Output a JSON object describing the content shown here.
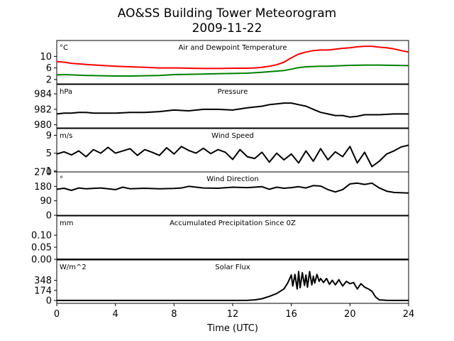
{
  "title_line1": "AO&SS Building Tower Meteorogram",
  "title_line2": "2009-11-22",
  "x_axis": {
    "label": "Time (UTC)",
    "range": [
      0,
      24
    ],
    "ticks": [
      0,
      4,
      8,
      12,
      16,
      20,
      24
    ],
    "tick_labels": [
      "0",
      "4",
      "8",
      "12",
      "16",
      "20",
      "24"
    ]
  },
  "chart_data": [
    {
      "type": "line",
      "title": "Air and Dewpoint Temperature",
      "unit_label": "°C",
      "ylim": [
        0.5,
        15.5
      ],
      "yticks": [
        2,
        6,
        10
      ],
      "ytick_labels": [
        "2",
        "6",
        "10"
      ],
      "series": [
        {
          "color": "#ff0000",
          "x": [
            0,
            0.5,
            1,
            1.5,
            2,
            3,
            4,
            5,
            6,
            7,
            8,
            9,
            10,
            11,
            12,
            12.5,
            13,
            13.5,
            14,
            14.5,
            15,
            15.5,
            16,
            16.5,
            17,
            17.5,
            18,
            18.5,
            19,
            19.5,
            20,
            20.5,
            21,
            21.5,
            22,
            22.5,
            23,
            23.5,
            24
          ],
          "y": [
            8.2,
            8.0,
            7.6,
            7.4,
            7.2,
            6.9,
            6.6,
            6.4,
            6.2,
            6.0,
            6.0,
            5.9,
            5.8,
            5.8,
            5.9,
            5.9,
            5.9,
            6.0,
            6.2,
            6.6,
            7.1,
            8.0,
            9.5,
            10.8,
            11.5,
            12.0,
            12.2,
            12.2,
            12.5,
            12.8,
            13.0,
            13.3,
            13.5,
            13.5,
            13.2,
            13.0,
            12.6,
            12.0,
            11.5
          ]
        },
        {
          "color": "#008000",
          "x": [
            0,
            0.5,
            1,
            2,
            3,
            4,
            5,
            6,
            7,
            8,
            9,
            10,
            11,
            12,
            13,
            14,
            15,
            15.5,
            16,
            16.5,
            17,
            17.5,
            18,
            18.5,
            19,
            19.5,
            20,
            21,
            22,
            23,
            24
          ],
          "y": [
            3.6,
            3.7,
            3.6,
            3.4,
            3.3,
            3.2,
            3.2,
            3.3,
            3.4,
            3.7,
            3.8,
            3.9,
            4.0,
            4.1,
            4.2,
            4.5,
            4.9,
            5.1,
            5.6,
            6.1,
            6.4,
            6.5,
            6.6,
            6.6,
            6.7,
            6.8,
            6.9,
            7.0,
            7.0,
            6.9,
            6.8
          ]
        }
      ]
    },
    {
      "type": "line",
      "title": "Pressure",
      "unit_label": "hPa",
      "ylim": [
        979.6,
        985.2
      ],
      "yticks": [
        980,
        982,
        984
      ],
      "ytick_labels": [
        "980",
        "982",
        "984"
      ],
      "series": [
        {
          "color": "#000000",
          "x": [
            0,
            0.5,
            1,
            1.5,
            2,
            2.5,
            3,
            4,
            5,
            6,
            7,
            8,
            9,
            10,
            11,
            12,
            13,
            14,
            14.5,
            15,
            15.5,
            16,
            16.5,
            17,
            17.5,
            18,
            18.5,
            19,
            19.5,
            20,
            20.5,
            21,
            22,
            23,
            24
          ],
          "y": [
            981.4,
            981.5,
            981.5,
            981.6,
            981.6,
            981.5,
            981.5,
            981.5,
            981.6,
            981.6,
            981.7,
            981.9,
            981.8,
            982.0,
            982.0,
            981.9,
            982.2,
            982.4,
            982.6,
            982.7,
            982.8,
            982.8,
            982.6,
            982.4,
            982.0,
            981.6,
            981.4,
            981.2,
            981.2,
            981.0,
            981.1,
            981.3,
            981.3,
            981.4,
            981.4
          ]
        }
      ]
    },
    {
      "type": "line",
      "title": "Wind Speed",
      "unit_label": "m/s",
      "ylim": [
        0.8,
        10.5
      ],
      "yticks": [
        1,
        5,
        9
      ],
      "ytick_labels": [
        "1",
        "5",
        "9"
      ],
      "series": [
        {
          "color": "#000000",
          "x": [
            0,
            0.5,
            1,
            1.5,
            2,
            2.5,
            3,
            3.5,
            4,
            4.5,
            5,
            5.5,
            6,
            6.5,
            7,
            7.5,
            8,
            8.5,
            9,
            9.5,
            10,
            10.5,
            11,
            11.5,
            12,
            12.5,
            13,
            13.5,
            14,
            14.5,
            15,
            15.5,
            16,
            16.5,
            17,
            17.5,
            18,
            18.5,
            19,
            19.5,
            20,
            20.5,
            21,
            21.5,
            22,
            22.5,
            23,
            23.5,
            24
          ],
          "y": [
            4.8,
            5.3,
            4.6,
            5.5,
            4.2,
            5.8,
            5.0,
            6.3,
            5.0,
            5.5,
            6.0,
            4.5,
            5.8,
            5.2,
            4.5,
            6.2,
            4.8,
            6.5,
            5.6,
            5.0,
            6.1,
            4.9,
            5.8,
            5.2,
            3.6,
            5.8,
            4.2,
            3.8,
            5.2,
            3.0,
            5.0,
            3.5,
            4.8,
            2.8,
            5.5,
            3.2,
            6.0,
            3.5,
            5.3,
            4.2,
            6.5,
            2.8,
            5.2,
            2.0,
            3.2,
            4.8,
            5.5,
            6.4,
            6.8
          ]
        }
      ]
    },
    {
      "type": "line",
      "title": "Wind Direction",
      "unit_label": "°",
      "ylim": [
        0,
        270
      ],
      "yticks": [
        0,
        90,
        180,
        270
      ],
      "ytick_labels": [
        "0",
        "90",
        "180",
        "270"
      ],
      "series": [
        {
          "color": "#000000",
          "x": [
            0,
            0.5,
            1,
            1.5,
            2,
            3,
            4,
            4.5,
            5,
            6,
            7,
            8,
            8.5,
            9,
            10,
            11,
            12,
            13,
            14,
            14.5,
            15,
            15.5,
            16,
            16.5,
            17,
            17.5,
            18,
            18.5,
            19,
            19.5,
            20,
            20.5,
            21,
            21.5,
            22,
            22.5,
            23,
            24
          ],
          "y": [
            162,
            168,
            155,
            170,
            165,
            170,
            160,
            175,
            165,
            168,
            165,
            167,
            170,
            180,
            170,
            168,
            175,
            172,
            178,
            162,
            175,
            168,
            172,
            178,
            170,
            185,
            182,
            160,
            145,
            160,
            195,
            200,
            192,
            200,
            170,
            150,
            142,
            138
          ]
        }
      ]
    },
    {
      "type": "line",
      "title": "Accumulated Precipitation Since 0Z",
      "unit_label": "mm",
      "ylim": [
        0,
        0.18
      ],
      "yticks": [
        0,
        0.05,
        0.1
      ],
      "ytick_labels": [
        "0.00",
        "0.05",
        "0.10"
      ],
      "series": [
        {
          "color": "#000000",
          "x": [
            0,
            24
          ],
          "y": [
            0,
            0
          ]
        }
      ]
    },
    {
      "type": "line",
      "title": "Solar Flux",
      "unit_label": "W/m^2",
      "ylim": [
        -50,
        700
      ],
      "yticks": [
        0,
        174,
        348
      ],
      "ytick_labels": [
        "0",
        "174",
        "348"
      ],
      "series": [
        {
          "color": "#000000",
          "x": [
            0,
            12,
            13,
            13.5,
            14,
            14.5,
            15,
            15.5,
            15.75,
            16,
            16.1,
            16.25,
            16.4,
            16.5,
            16.6,
            16.75,
            16.9,
            17,
            17.1,
            17.25,
            17.4,
            17.5,
            17.6,
            17.75,
            17.9,
            18,
            18.2,
            18.4,
            18.6,
            18.8,
            19,
            19.25,
            19.5,
            19.75,
            20,
            20.25,
            20.5,
            20.75,
            21,
            21.25,
            21.5,
            21.75,
            22,
            22.5,
            23,
            24
          ],
          "y": [
            0,
            0,
            2,
            10,
            30,
            70,
            120,
            200,
            300,
            440,
            250,
            450,
            200,
            500,
            220,
            480,
            260,
            440,
            230,
            500,
            270,
            420,
            300,
            450,
            330,
            380,
            310,
            380,
            280,
            350,
            270,
            360,
            250,
            330,
            290,
            310,
            200,
            290,
            230,
            200,
            160,
            60,
            10,
            2,
            0,
            0
          ]
        }
      ]
    }
  ]
}
